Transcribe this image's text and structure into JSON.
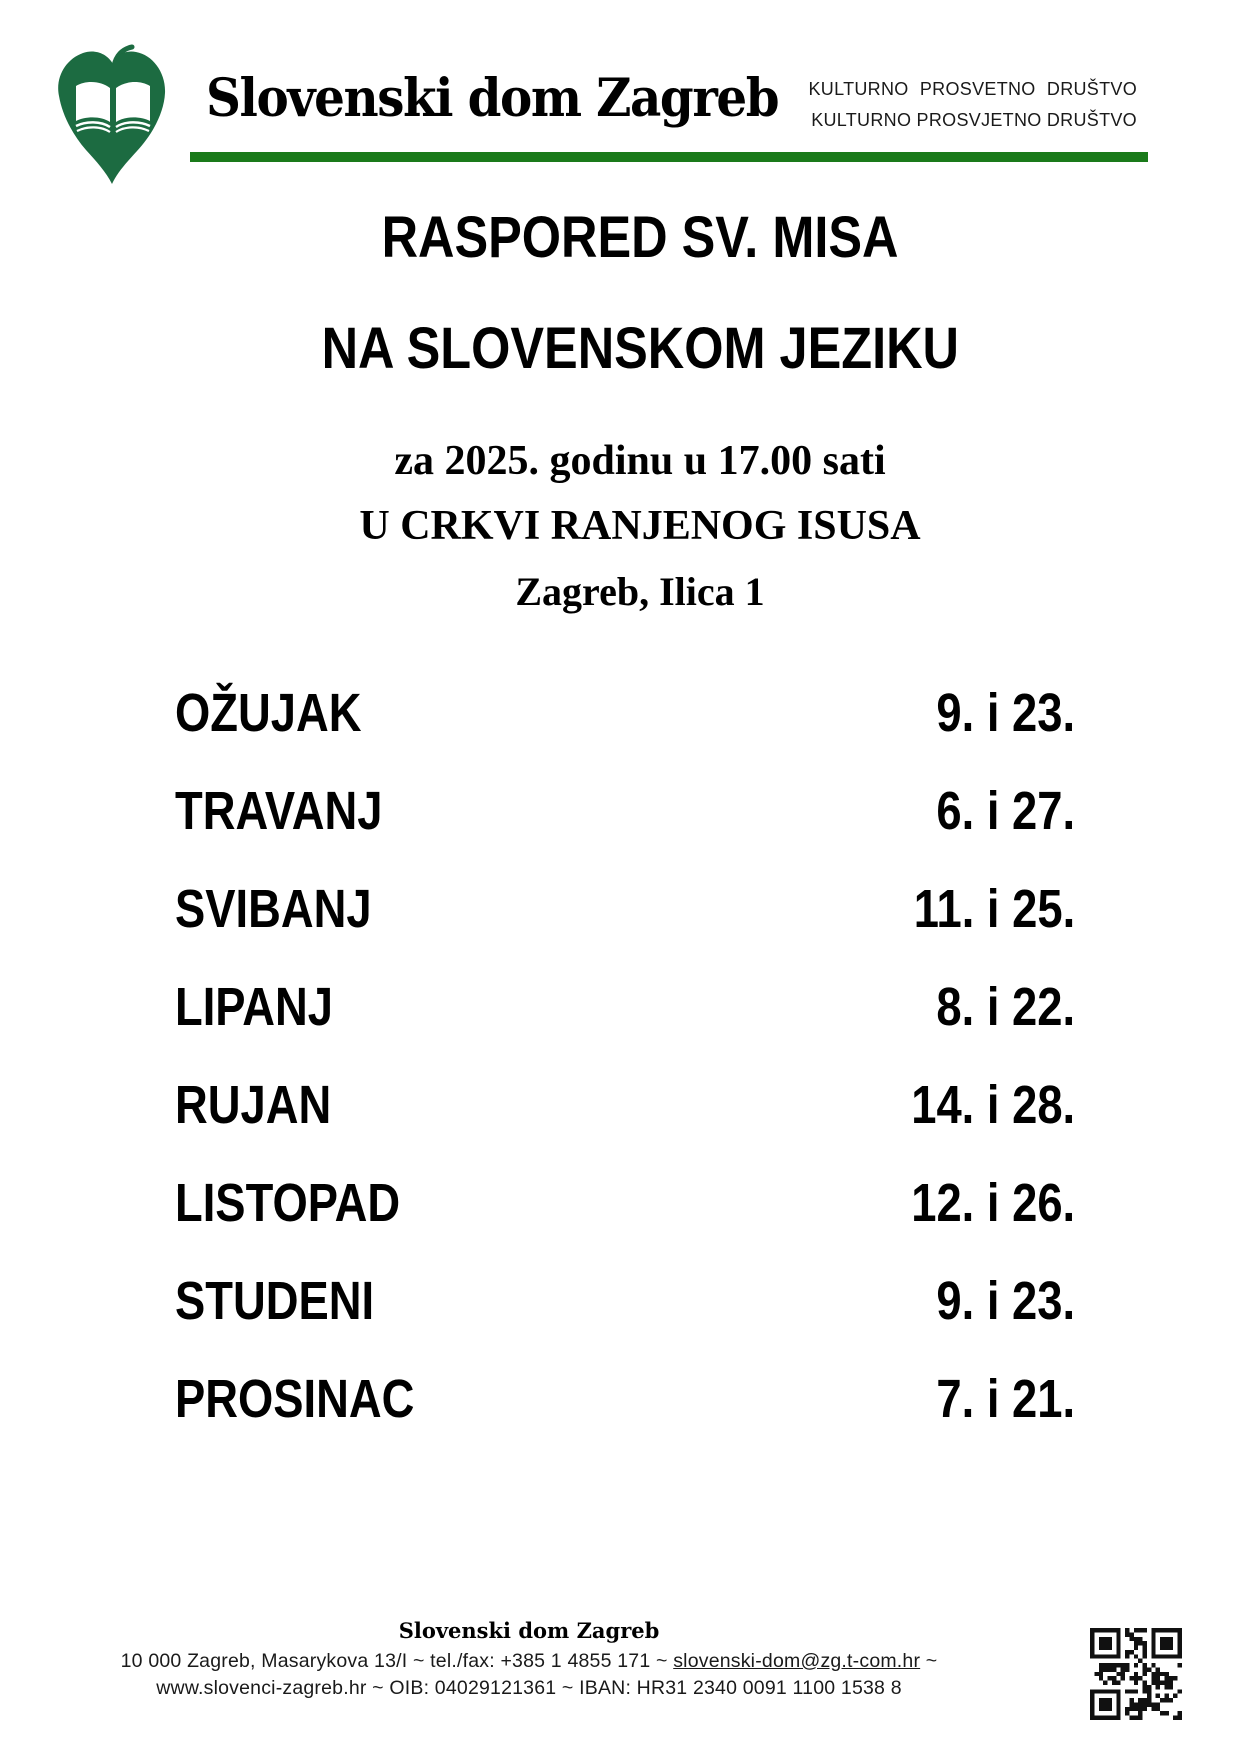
{
  "colors": {
    "logo_green": "#1c6b41",
    "rule_green": "#1a7a1a",
    "text_black": "#000000"
  },
  "header": {
    "org_name": "Slovenski dom Zagreb",
    "tagline_line1": "KULTURNO PROSVETNO DRUŠTVO",
    "tagline_line2": "KULTURNO PROSVJETNO DRUŠTVO"
  },
  "headings": {
    "line1": "RASPORED SV. MISA",
    "line2": "NA SLOVENSKOM JEZIKU",
    "line3": "za 2025. godinu u 17.00 sati",
    "line4": "U CRKVI RANJENOG ISUSA",
    "line5": "Zagreb, Ilica 1"
  },
  "schedule": [
    {
      "month": "OŽUJAK",
      "dates": "9. i 23."
    },
    {
      "month": "TRAVANJ",
      "dates": "6. i 27."
    },
    {
      "month": "SVIBANJ",
      "dates": "11. i 25."
    },
    {
      "month": "LIPANJ",
      "dates": "8. i 22."
    },
    {
      "month": "RUJAN",
      "dates": "14. i 28."
    },
    {
      "month": "LISTOPAD",
      "dates": "12. i 26."
    },
    {
      "month": "STUDENI",
      "dates": "9. i 23."
    },
    {
      "month": "PROSINAC",
      "dates": "7. i 21."
    }
  ],
  "footer": {
    "org_name": "Slovenski dom Zagreb",
    "contact_prefix": "10 000 Zagreb, Masarykova 13/I ~ tel./fax: +385 1 4855 171 ~ ",
    "email": "slovenski-dom@zg.t-com.hr",
    "contact_suffix": " ~",
    "info_line": "www.slovenci-zagreb.hr ~ OIB: 04029121361 ~ IBAN: HR31 2340 0091 1100 1538 8"
  },
  "icons": {
    "logo": "linden-leaf-open-book-logo",
    "qr": "qr-code"
  }
}
